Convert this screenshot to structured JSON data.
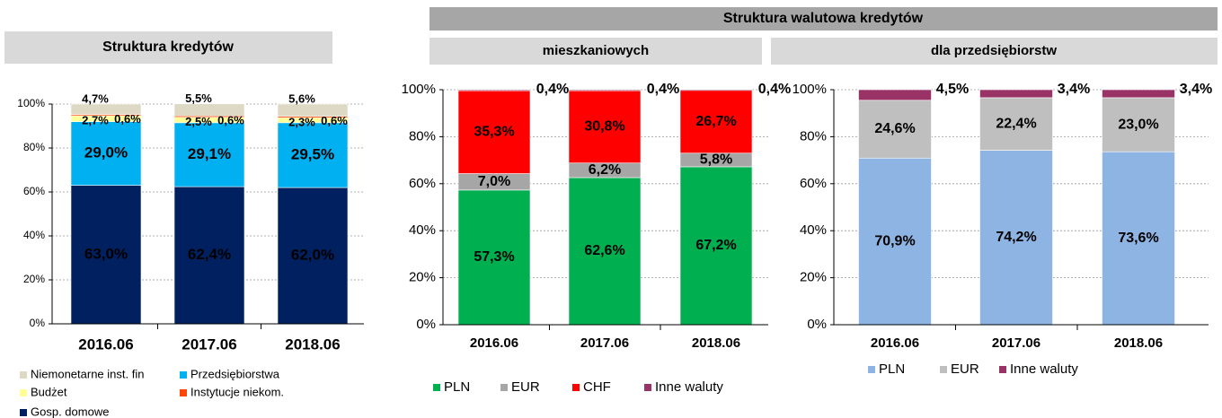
{
  "group_title": "Struktura walutowa kredytów",
  "chart_data": [
    {
      "type": "bar",
      "stacked": true,
      "title": "Struktura kredytów",
      "categories": [
        "2016.06",
        "2017.06",
        "2018.06"
      ],
      "ylim": [
        0,
        100
      ],
      "yticks": [
        {
          "value": 0,
          "label": "0%"
        },
        {
          "value": 20,
          "label": "20%"
        },
        {
          "value": 40,
          "label": "40%"
        },
        {
          "value": 60,
          "label": "60%"
        },
        {
          "value": 80,
          "label": "80%"
        },
        {
          "value": 100,
          "label": "100%"
        }
      ],
      "grid": true,
      "series": [
        {
          "name": "Gosp. domowe",
          "color": "#002060",
          "values": [
            63.0,
            62.4,
            62.0
          ],
          "value_labels": [
            "63,0%",
            "62,4%",
            "62,0%"
          ]
        },
        {
          "name": "Przedsiębiorstwa",
          "color": "#00b0f0",
          "values": [
            29.0,
            29.1,
            29.5
          ],
          "value_labels": [
            "29,0%",
            "29,1%",
            "29,5%"
          ]
        },
        {
          "name": "Budżet",
          "color": "#ffff99",
          "values": [
            2.7,
            2.5,
            2.3
          ],
          "value_labels": [
            "2,7%",
            "2,5%",
            "2,3%"
          ]
        },
        {
          "name": "Instytucje niekom.",
          "color": "#ff4500",
          "values": [
            0.6,
            0.6,
            0.6
          ],
          "value_labels": [
            "0,6%",
            "0,6%",
            "0,6%"
          ]
        },
        {
          "name": "Niemonetarne inst. fin",
          "color": "#ddd9c4",
          "values": [
            4.7,
            5.5,
            5.6
          ],
          "value_labels": [
            "4,7%",
            "5,5%",
            "5,6%"
          ]
        }
      ]
    },
    {
      "type": "bar",
      "stacked": true,
      "title": "mieszkaniowych",
      "categories": [
        "2016.06",
        "2017.06",
        "2018.06"
      ],
      "ylim": [
        0,
        100
      ],
      "yticks": [
        {
          "value": 0,
          "label": "0%"
        },
        {
          "value": 20,
          "label": "20%"
        },
        {
          "value": 40,
          "label": "40%"
        },
        {
          "value": 60,
          "label": "60%"
        },
        {
          "value": 80,
          "label": "80%"
        },
        {
          "value": 100,
          "label": "100%"
        }
      ],
      "grid": true,
      "series": [
        {
          "name": "PLN",
          "color": "#00b050",
          "values": [
            57.3,
            62.6,
            67.2
          ],
          "value_labels": [
            "57,3%",
            "62,6%",
            "67,2%"
          ]
        },
        {
          "name": "EUR",
          "color": "#a6a6a6",
          "values": [
            7.0,
            6.2,
            5.8
          ],
          "value_labels": [
            "7,0%",
            "6,2%",
            "5,8%"
          ]
        },
        {
          "name": "CHF",
          "color": "#ff0000",
          "values": [
            35.3,
            30.8,
            26.7
          ],
          "value_labels": [
            "35,3%",
            "30,8%",
            "26,7%"
          ]
        },
        {
          "name": "Inne waluty",
          "color": "#993366",
          "values": [
            0.4,
            0.4,
            0.4
          ],
          "value_labels": [
            "0,4%",
            "0,4%",
            "0,4%"
          ]
        }
      ]
    },
    {
      "type": "bar",
      "stacked": true,
      "title": "dla przedsiębiorstw",
      "categories": [
        "2016.06",
        "2017.06",
        "2018.06"
      ],
      "ylim": [
        0,
        100
      ],
      "yticks": [
        {
          "value": 0,
          "label": "0%"
        },
        {
          "value": 20,
          "label": "20%"
        },
        {
          "value": 40,
          "label": "40%"
        },
        {
          "value": 60,
          "label": "60%"
        },
        {
          "value": 80,
          "label": "80%"
        },
        {
          "value": 100,
          "label": "100%"
        }
      ],
      "grid": true,
      "series": [
        {
          "name": "PLN",
          "color": "#8db4e2",
          "values": [
            70.9,
            74.2,
            73.6
          ],
          "value_labels": [
            "70,9%",
            "74,2%",
            "73,6%"
          ]
        },
        {
          "name": "EUR",
          "color": "#bfbfbf",
          "values": [
            24.6,
            22.4,
            23.0
          ],
          "value_labels": [
            "24,6%",
            "22,4%",
            "23,0%"
          ]
        },
        {
          "name": "Inne waluty",
          "color": "#993366",
          "values": [
            4.5,
            3.4,
            3.4
          ],
          "value_labels": [
            "4,5%",
            "3,4%",
            "3,4%"
          ]
        }
      ]
    }
  ]
}
